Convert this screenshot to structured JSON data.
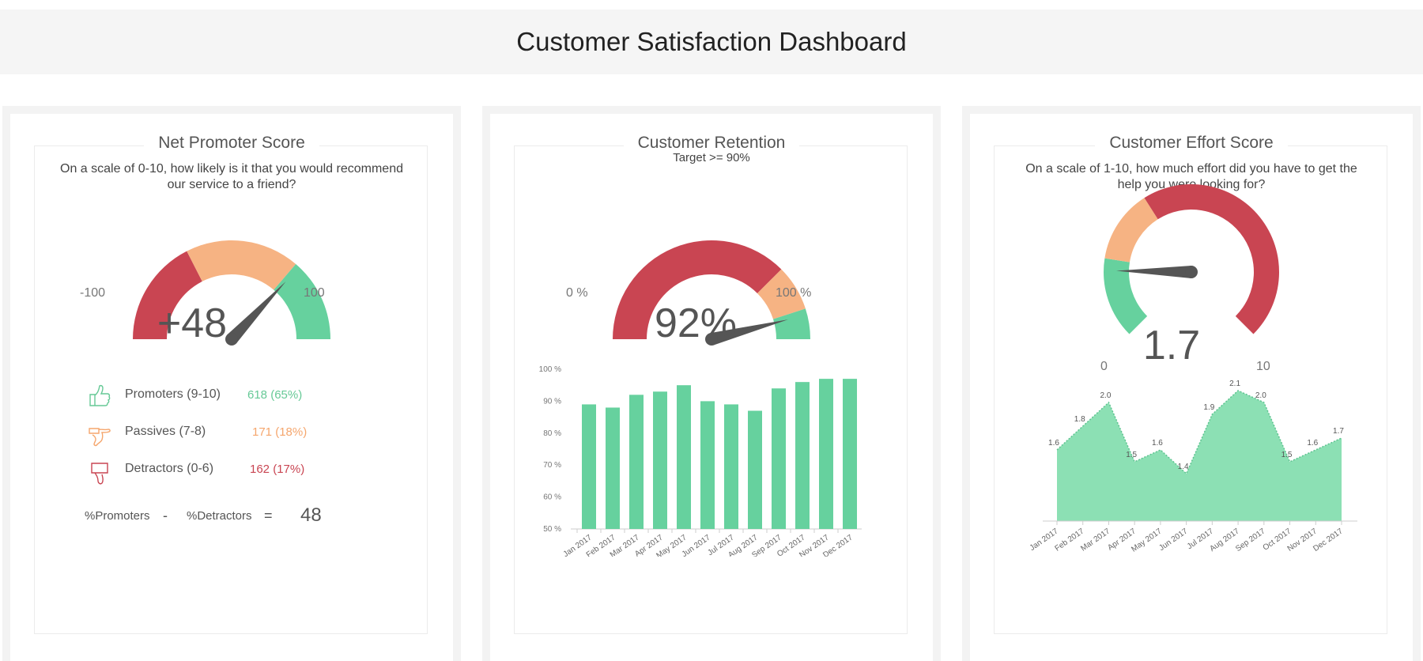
{
  "header": {
    "title": "Customer Satisfaction Dashboard"
  },
  "nps": {
    "title": "Net Promoter Score",
    "question": "On a scale of 0-10, how likely is it that you would recommend our service to a friend?",
    "min_label": "-100",
    "max_label": "100",
    "value_label": "+48",
    "value": 48,
    "segments": [
      {
        "name": "Detractors",
        "from": -100,
        "to": -30,
        "color": "#c94552"
      },
      {
        "name": "Passives",
        "from": -30,
        "to": 45,
        "color": "#f6b383"
      },
      {
        "name": "Promoters",
        "from": 45,
        "to": 100,
        "color": "#66d19e"
      }
    ],
    "legend": [
      {
        "label": "Promoters (9-10)",
        "value": "618 (65%)",
        "color": "#66c996",
        "icon": "thumbs-up-icon"
      },
      {
        "label": "Passives (7-8)",
        "value": "171 (18%)",
        "color": "#f5a66d",
        "icon": "thumbs-sideways-icon"
      },
      {
        "label": "Detractors (0-6)",
        "value": "162 (17%)",
        "color": "#c94552",
        "icon": "thumbs-down-icon"
      }
    ],
    "formula": {
      "left": "%Promoters",
      "minus": "-",
      "right": "%Detractors",
      "equals": "=",
      "result": "48"
    }
  },
  "retention": {
    "title": "Customer Retention",
    "target": "Target >=  90%",
    "min_label": "0 %",
    "max_label": "100 %",
    "value_label": "92%",
    "value": 92,
    "segments": [
      {
        "from": 0,
        "to": 75,
        "color": "#c94552"
      },
      {
        "from": 75,
        "to": 90,
        "color": "#f6b383"
      },
      {
        "from": 90,
        "to": 100,
        "color": "#66d19e"
      }
    ]
  },
  "effort": {
    "title": "Customer Effort Score",
    "question": "On a scale of 1-10, how much effort did you have to get the help you were looking for?",
    "min_label": "0",
    "max_label": "10",
    "value_label": "1.7",
    "value": 1.7,
    "segments": [
      {
        "from": 0,
        "to": 2,
        "color": "#66d19e"
      },
      {
        "from": 2,
        "to": 3.8,
        "color": "#f6b383"
      },
      {
        "from": 3.8,
        "to": 10,
        "color": "#c94552"
      }
    ]
  },
  "chart_data": [
    {
      "type": "bar",
      "categories": [
        "Jan 2017",
        "Feb 2017",
        "Mar 2017",
        "Apr 2017",
        "May 2017",
        "Jun 2017",
        "Jul 2017",
        "Aug 2017",
        "Sep 2017",
        "Oct 2017",
        "Nov 2017",
        "Dec 2017"
      ],
      "values": [
        89,
        88,
        92,
        93,
        95,
        90,
        89,
        87,
        94,
        96,
        97,
        97
      ],
      "ylim": [
        50,
        100
      ],
      "yticks": [
        "50 %",
        "60 %",
        "70 %",
        "80 %",
        "90 %",
        "100 %"
      ],
      "color": "#66d19e"
    },
    {
      "type": "area",
      "categories": [
        "Jan 2017",
        "Feb 2017",
        "Mar 2017",
        "Apr 2017",
        "May 2017",
        "Jun 2017",
        "Jul 2017",
        "Aug 2017",
        "Sep 2017",
        "Oct 2017",
        "Nov 2017",
        "Dec 2017"
      ],
      "values": [
        1.6,
        1.8,
        2.0,
        1.5,
        1.6,
        1.4,
        1.9,
        2.1,
        2.0,
        1.5,
        1.6,
        1.7
      ],
      "labels": [
        "1.6",
        "1.8",
        "2.0",
        "1.5",
        "1.6",
        "1.4",
        "1.9",
        "2.1",
        "2.0",
        "1.5",
        "1.6",
        "1.7"
      ],
      "ylim": [
        1.0,
        2.2
      ],
      "color": "#8ce0b4"
    }
  ]
}
